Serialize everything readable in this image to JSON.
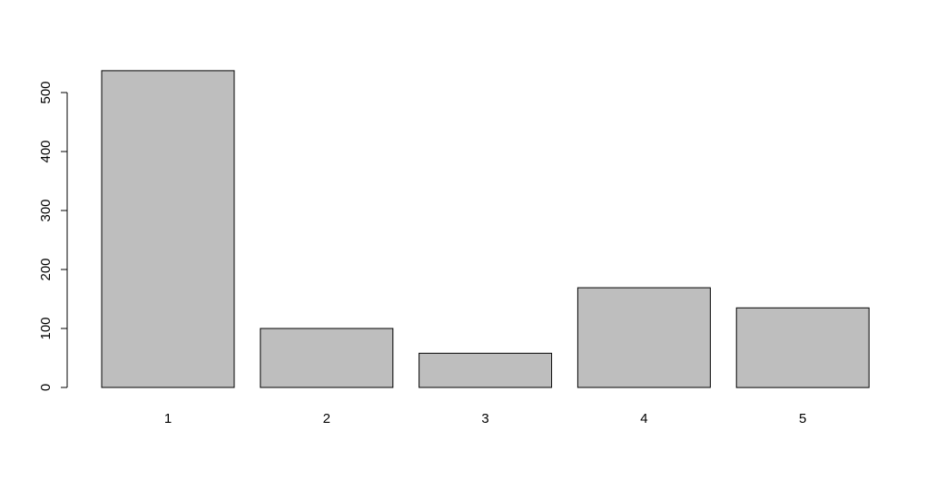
{
  "chart_data": {
    "type": "bar",
    "categories": [
      "1",
      "2",
      "3",
      "4",
      "5"
    ],
    "values": [
      537,
      100,
      58,
      169,
      135
    ],
    "title": "",
    "xlabel": "",
    "ylabel": "",
    "ylim": [
      0,
      537
    ],
    "yticks": [
      0,
      100,
      200,
      300,
      400,
      500
    ],
    "ytick_labels": [
      "0",
      "100",
      "200",
      "300",
      "400",
      "500"
    ],
    "grid": false,
    "bar_color": "#bebebe",
    "border_color": "#000000"
  }
}
